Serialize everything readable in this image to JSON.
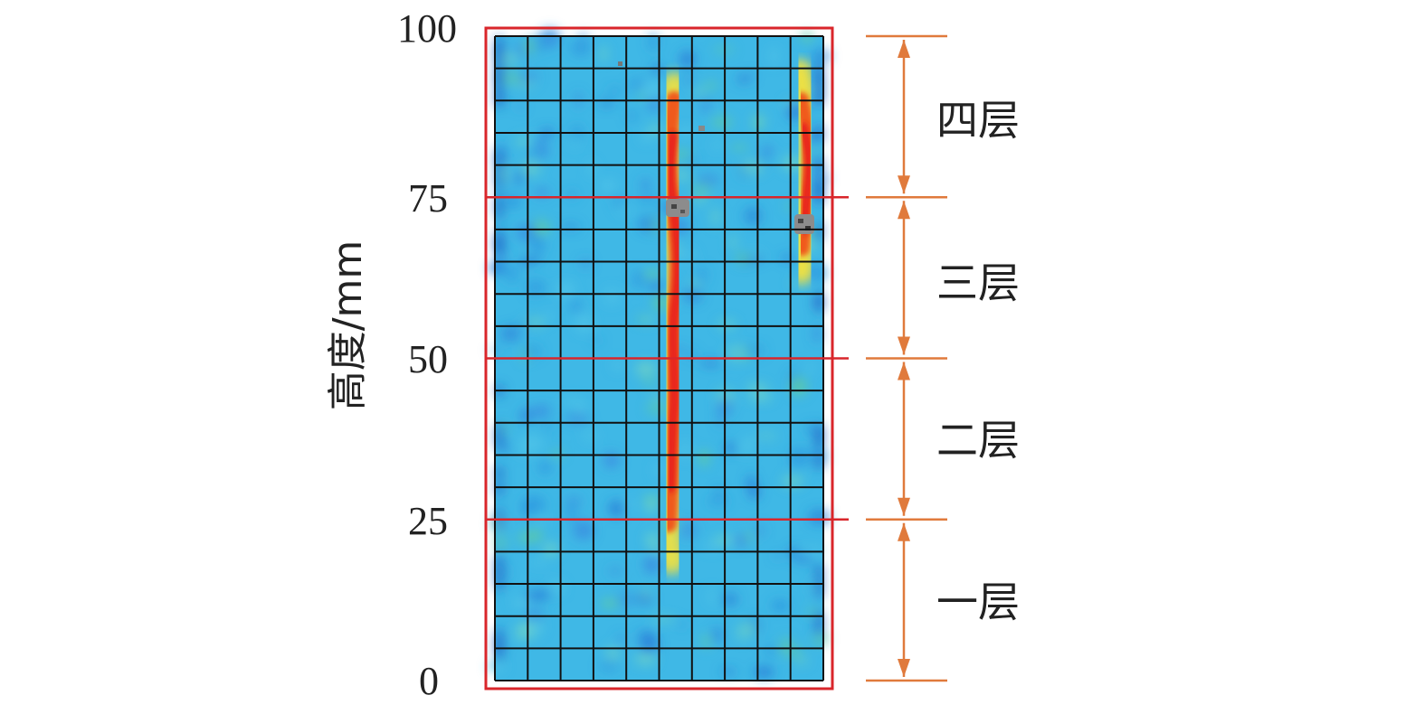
{
  "axis": {
    "ylabel": "高度/mm",
    "ticks": [
      "100",
      "75",
      "50",
      "25",
      "0"
    ]
  },
  "layers": [
    "四层",
    "三层",
    "二层",
    "一层"
  ],
  "colors": {
    "frame": "#d9262b",
    "divider": "#d9262b",
    "arrow": "#e07a3c",
    "grid": "#111111",
    "field": "#38b6e8",
    "crack_hot": "#e8231a",
    "crack_warm": "#f6e23a"
  }
}
